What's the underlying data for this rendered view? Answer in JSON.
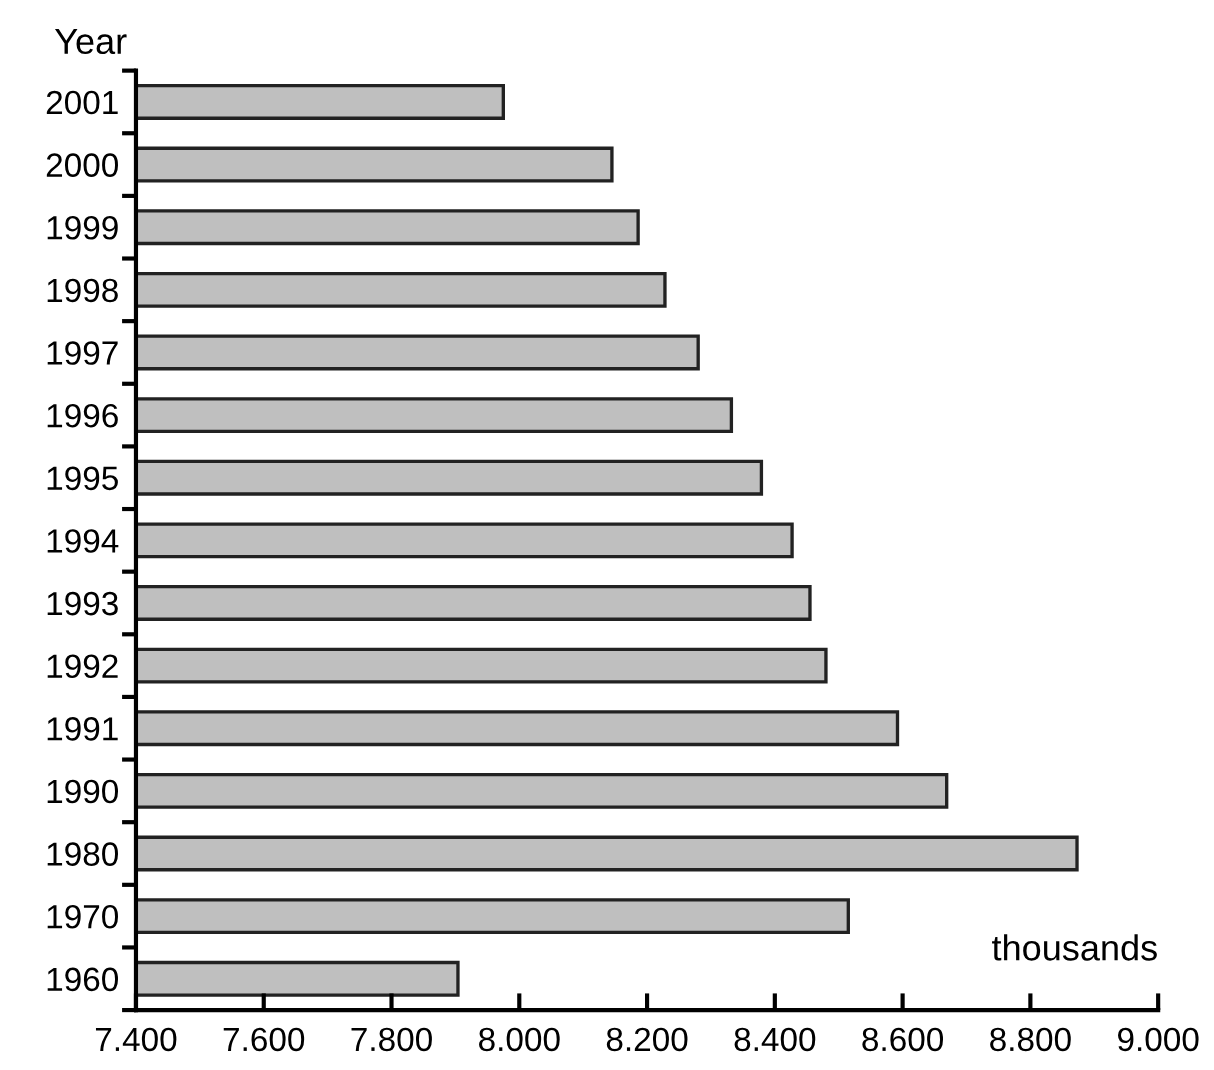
{
  "chart_data": {
    "type": "bar",
    "orientation": "horizontal",
    "xlabel": "thousands",
    "ylabel": "Year",
    "categories": [
      "2001",
      "2000",
      "1999",
      "1998",
      "1997",
      "1996",
      "1995",
      "1994",
      "1993",
      "1992",
      "1991",
      "1990",
      "1980",
      "1970",
      "1960"
    ],
    "values": [
      7.975,
      8.145,
      8.186,
      8.228,
      8.28,
      8.332,
      8.379,
      8.427,
      8.455,
      8.48,
      8.592,
      8.669,
      8.873,
      8.515,
      7.904
    ],
    "color": "#bfbfbf",
    "xlim": [
      7.4,
      9.0
    ],
    "xticks": [
      {
        "value": 7.4,
        "label": "7.400"
      },
      {
        "value": 7.6,
        "label": "7.600"
      },
      {
        "value": 7.8,
        "label": "7.800"
      },
      {
        "value": 8.0,
        "label": "8.000"
      },
      {
        "value": 8.2,
        "label": "8.200"
      },
      {
        "value": 8.4,
        "label": "8.400"
      },
      {
        "value": 8.6,
        "label": "8.600"
      },
      {
        "value": 8.8,
        "label": "8.800"
      },
      {
        "value": 9.0,
        "label": "9.000"
      }
    ],
    "grid": false,
    "legend": false
  }
}
